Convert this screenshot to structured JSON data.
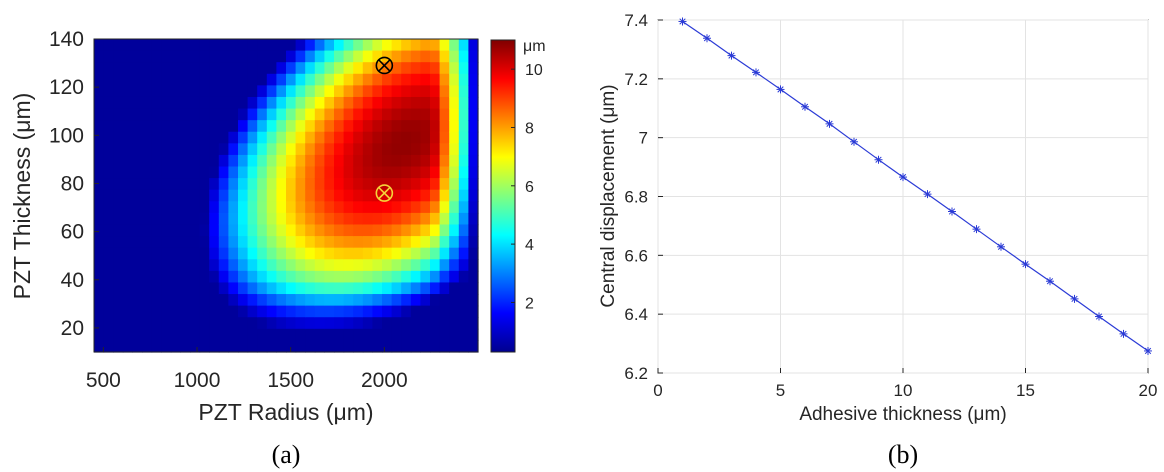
{
  "chart_data": [
    {
      "type": "heatmap",
      "panel_label": "(a)",
      "xlabel": "PZT Radius (μm)",
      "ylabel": "PZT Thickness (μm)",
      "xlim": [
        450,
        2500
      ],
      "ylim": [
        10,
        140
      ],
      "x_ticks": [
        "500",
        "1000",
        "1500",
        "2000"
      ],
      "y_ticks": [
        "20",
        "40",
        "60",
        "80",
        "100",
        "120",
        "140"
      ],
      "colorbar": {
        "label": "μm",
        "range": [
          0.3,
          11
        ],
        "ticks": [
          "2",
          "4",
          "6",
          "8",
          "10"
        ]
      },
      "peak": {
        "x": 2080,
        "y": 95,
        "value": 10.8
      },
      "markers": [
        {
          "name": "black-cross-marker",
          "x": 2000,
          "y": 129,
          "color": "#000000"
        },
        {
          "name": "yellow-cross-marker",
          "x": 2000,
          "y": 76,
          "color": "#f5d33a"
        }
      ],
      "colormap": "jet"
    },
    {
      "type": "line",
      "panel_label": "(b)",
      "xlabel": "Adhesive thickness (μm)",
      "ylabel": "Central displacement (μm)",
      "xlim": [
        0,
        20
      ],
      "ylim": [
        6.2,
        7.4
      ],
      "x_ticks": [
        "0",
        "5",
        "10",
        "15",
        "20"
      ],
      "y_ticks": [
        "6.2",
        "6.4",
        "6.6",
        "6.8",
        "7",
        "7.2",
        "7.4"
      ],
      "grid": true,
      "series": [
        {
          "color": "#2b3bd6",
          "marker": "asterisk",
          "x": [
            1,
            2,
            3,
            4,
            5,
            6,
            7,
            8,
            9,
            10,
            11,
            12,
            13,
            14,
            15,
            16,
            17,
            18,
            19,
            20
          ],
          "y": [
            7.395,
            7.338,
            7.279,
            7.222,
            7.164,
            7.105,
            7.047,
            6.986,
            6.925,
            6.866,
            6.808,
            6.749,
            6.689,
            6.629,
            6.57,
            6.512,
            6.452,
            6.392,
            6.333,
            6.275
          ]
        }
      ]
    }
  ]
}
